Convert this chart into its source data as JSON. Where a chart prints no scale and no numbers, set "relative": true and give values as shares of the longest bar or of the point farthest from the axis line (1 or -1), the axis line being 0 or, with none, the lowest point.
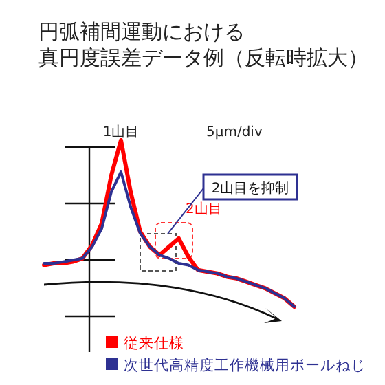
{
  "chart_data": {
    "type": "line",
    "title": "円弧補間運動における真円度誤差データ例（反転時拡大）",
    "relative": true,
    "legend": "bottom",
    "categories": [
      null,
      null,
      null,
      null,
      null,
      null,
      null,
      null,
      null,
      null,
      null,
      null,
      null,
      null,
      null,
      null,
      null,
      null,
      null,
      null,
      null,
      null,
      null,
      null,
      null,
      null,
      null
    ],
    "series": [
      {
        "name": "従来仕様",
        "color": "#ff0000",
        "values": [
          0.25,
          0.26,
          0.26,
          0.27,
          0.29,
          0.37,
          0.5,
          0.79,
          1,
          0.69,
          0.45,
          0.36,
          0.31,
          0.36,
          0.41,
          0.3,
          0.22,
          0.21,
          0.2,
          0.18,
          0.17,
          0.15,
          0.13,
          0.11,
          0.08,
          0.05,
          0
        ]
      },
      {
        "name": "次世代高精度工作機械用ボールねじ",
        "color": "#2e3192",
        "values": [
          0.26,
          0.26,
          0.27,
          0.28,
          0.29,
          0.36,
          0.47,
          0.69,
          0.81,
          0.6,
          0.44,
          0.36,
          0.31,
          0.29,
          0.26,
          0.25,
          0.22,
          0.21,
          0.2,
          0.18,
          0.17,
          0.15,
          0.13,
          0.11,
          0.08,
          0.05,
          0
        ]
      }
    ],
    "annotations": [
      "1山目",
      "5μm/div",
      "2山目",
      "2山目を抑制"
    ]
  }
}
